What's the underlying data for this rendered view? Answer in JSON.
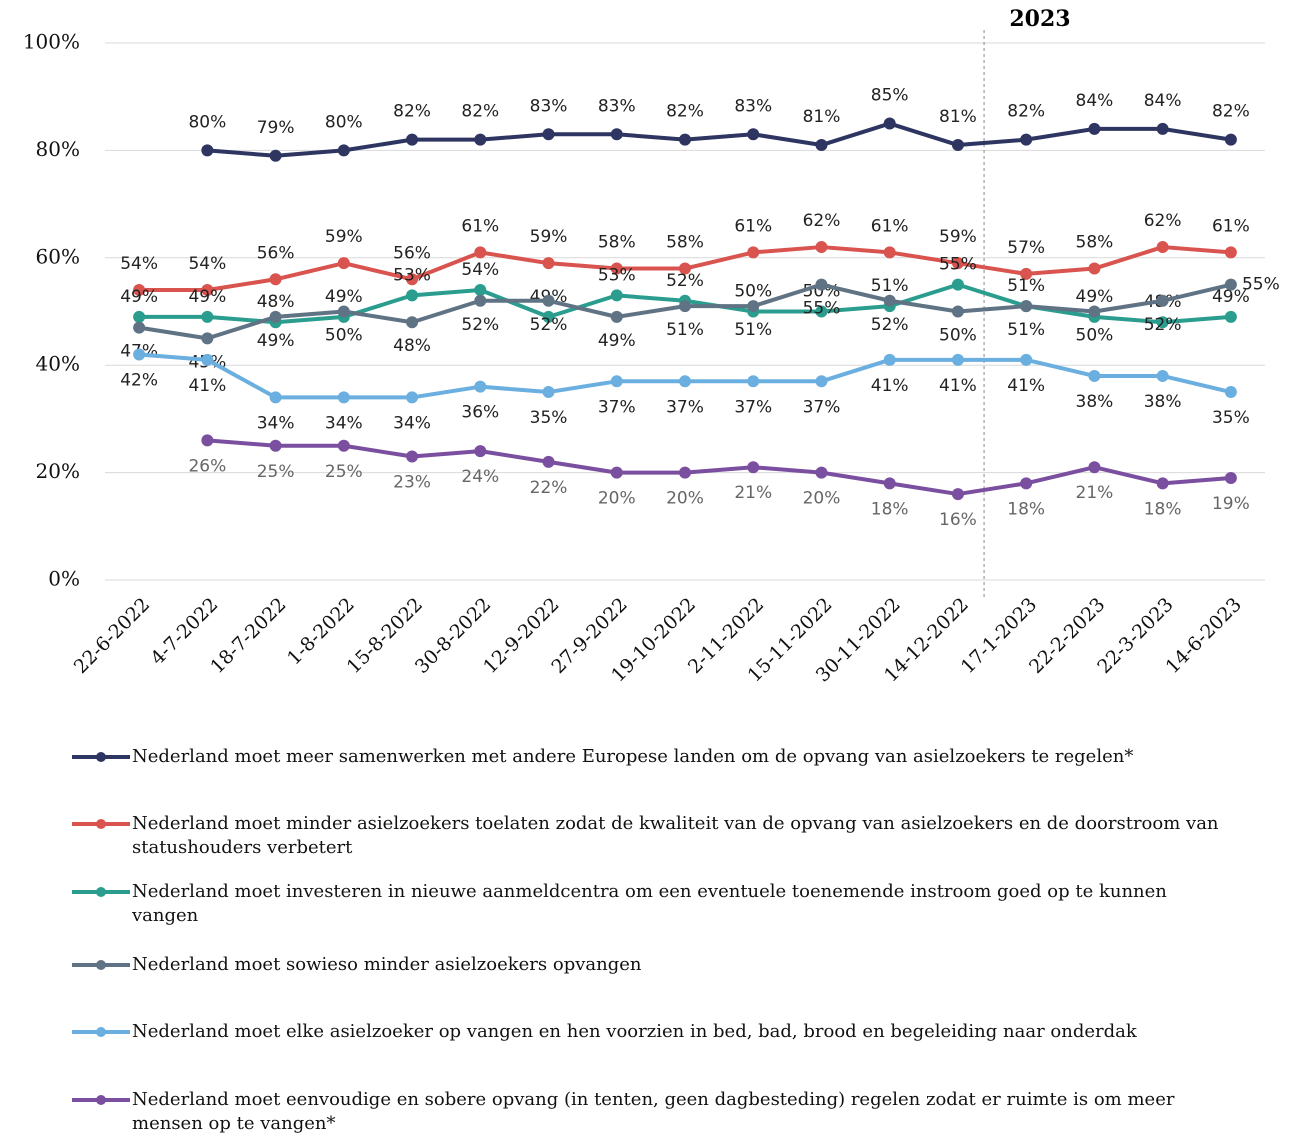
{
  "chart_data": {
    "type": "line",
    "annotation": "2023",
    "categories": [
      "22-6-2022",
      "4-7-2022",
      "18-7-2022",
      "1-8-2022",
      "15-8-2022",
      "30-8-2022",
      "12-9-2022",
      "27-9-2022",
      "19-10-2022",
      "2-11-2022",
      "15-11-2022",
      "30-11-2022",
      "14-12-2022",
      "17-1-2023",
      "22-2-2023",
      "22-3-2023",
      "14-6-2023"
    ],
    "ylim": [
      0,
      100
    ],
    "yticks": [
      {
        "value": 0,
        "label": "0%"
      },
      {
        "value": 20,
        "label": "20%"
      },
      {
        "value": 40,
        "label": "40%"
      },
      {
        "value": 60,
        "label": "60%"
      },
      {
        "value": 80,
        "label": "80%"
      },
      {
        "value": 100,
        "label": "100%"
      }
    ],
    "grid": true,
    "series": [
      {
        "name": "Nederland moet meer samenwerken met andere Europese landen om de opvang van asielzoekers te regelen*",
        "color": "#2e3561",
        "values": [
          null,
          80,
          79,
          80,
          82,
          82,
          83,
          83,
          82,
          83,
          81,
          85,
          81,
          82,
          84,
          84,
          82
        ],
        "value_labels": [
          null,
          "80%",
          "79%",
          "80%",
          "82%",
          "82%",
          "83%",
          "83%",
          "82%",
          "83%",
          "81%",
          "85%",
          "81%",
          "82%",
          "84%",
          "84%",
          "82%"
        ]
      },
      {
        "name": "Nederland moet minder asielzoekers toelaten zodat de kwaliteit van de opvang van asielzoekers en de doorstroom van statushouders verbetert",
        "color": "#d9534f",
        "values": [
          54,
          54,
          56,
          59,
          56,
          61,
          59,
          58,
          58,
          61,
          62,
          61,
          59,
          57,
          58,
          62,
          61
        ],
        "value_labels": [
          "54%",
          "54%",
          "56%",
          "59%",
          "56%",
          "61%",
          "59%",
          "58%",
          "58%",
          "61%",
          "62%",
          "61%",
          "59%",
          "57%",
          "58%",
          "62%",
          "61%"
        ]
      },
      {
        "name": "Nederland moet investeren in nieuwe aanmeldcentra om een eventuele toenemende instroom goed op te kunnen vangen",
        "color": "#2a9d8f",
        "values": [
          49,
          49,
          48,
          49,
          53,
          54,
          49,
          53,
          52,
          50,
          50,
          51,
          55,
          51,
          49,
          48,
          49
        ],
        "value_labels": [
          "49%",
          "49%",
          "48%",
          "49%",
          "53%",
          "54%",
          "49%",
          "53%",
          "52%",
          "50%",
          "50%",
          "51%",
          "55%",
          "51%",
          "49%",
          "48%",
          "49%"
        ]
      },
      {
        "name": "Nederland moet sowieso minder asielzoekers opvangen",
        "color": "#5f7385",
        "values": [
          47,
          45,
          49,
          50,
          48,
          52,
          52,
          49,
          51,
          51,
          55,
          52,
          50,
          51,
          50,
          52,
          55
        ],
        "value_labels": [
          "47%",
          "45%",
          "49%",
          "50%",
          "48%",
          "52%",
          "52%",
          "49%",
          "51%",
          "51%",
          "55%",
          "52%",
          "50%",
          "51%",
          "50%",
          "52%",
          "55%"
        ]
      },
      {
        "name": "Nederland moet elke asielzoeker op vangen en hen voorzien in bed, bad, brood en begeleiding naar onderdak",
        "color": "#6aafe0",
        "values": [
          42,
          41,
          34,
          34,
          34,
          36,
          35,
          37,
          37,
          37,
          37,
          41,
          41,
          41,
          38,
          38,
          35
        ],
        "value_labels": [
          "42%",
          "41%",
          "34%",
          "34%",
          "34%",
          "36%",
          "35%",
          "37%",
          "37%",
          "37%",
          "37%",
          "41%",
          "41%",
          "41%",
          "38%",
          "38%",
          "35%"
        ]
      },
      {
        "name": "Nederland moet eenvoudige en sobere opvang (in tenten, geen dagbesteding) regelen zodat er ruimte is om meer mensen op te vangen*",
        "color": "#7b4fa0",
        "values": [
          null,
          26,
          25,
          25,
          23,
          24,
          22,
          20,
          20,
          21,
          20,
          18,
          16,
          18,
          21,
          18,
          19
        ],
        "value_labels": [
          null,
          "26%",
          "25%",
          "25%",
          "23%",
          "24%",
          "22%",
          "20%",
          "20%",
          "21%",
          "20%",
          "18%",
          "16%",
          "18%",
          "21%",
          "18%",
          "19%"
        ]
      }
    ]
  }
}
